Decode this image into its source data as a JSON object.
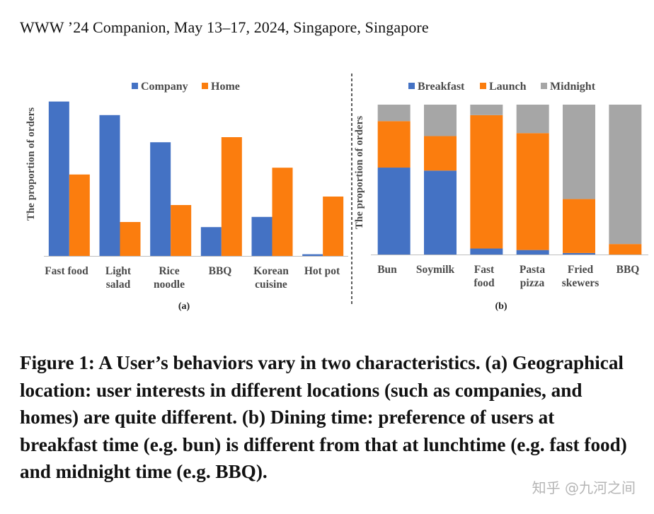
{
  "header": "WWW ’24 Companion, May 13–17, 2024, Singapore, Singapore",
  "caption": "Figure 1: A User’s behaviors vary in two characteristics. (a) Geographical location: user interests in different locations (such as companies, and homes) are quite different. (b) Dining time: preference of users at breakfast time (e.g. bun) is different from that at lunchtime (e.g. fast food) and midnight time (e.g. BBQ).",
  "watermark": "知乎 @九河之间",
  "colors": {
    "blue": "#4472c4",
    "orange": "#fb7d0e",
    "gray": "#a6a6a6"
  },
  "chart_data": [
    {
      "type": "bar",
      "sublabel": "(a)",
      "ylabel": "The proportion of orders",
      "legend_position": "top-right",
      "categories": [
        [
          "Fast food"
        ],
        [
          "Light",
          "salad"
        ],
        [
          "Rice",
          "noodle"
        ],
        [
          "BBQ"
        ],
        [
          "Korean",
          "cuisine"
        ],
        [
          "Hot pot"
        ]
      ],
      "series": [
        {
          "name": "Company",
          "color": "#4472c4",
          "values": [
            0.91,
            0.83,
            0.67,
            0.17,
            0.23,
            0.01
          ]
        },
        {
          "name": "Home",
          "color": "#fb7d0e",
          "values": [
            0.48,
            0.2,
            0.3,
            0.7,
            0.52,
            0.35
          ]
        }
      ],
      "ylim": [
        0,
        1
      ],
      "grid": false
    },
    {
      "type": "bar",
      "stacked": true,
      "sublabel": "(b)",
      "ylabel": "The proportion of orders",
      "legend_position": "top",
      "categories": [
        [
          "Bun"
        ],
        [
          "Soymilk"
        ],
        [
          "Fast",
          "food"
        ],
        [
          "Pasta",
          "pizza"
        ],
        [
          "Fried",
          "skewers"
        ],
        [
          "BBQ"
        ]
      ],
      "series": [
        {
          "name": "Breakfast",
          "color": "#4472c4",
          "values": [
            0.58,
            0.56,
            0.04,
            0.03,
            0.01,
            0.0
          ]
        },
        {
          "name": "Launch",
          "color": "#fb7d0e",
          "values": [
            0.31,
            0.23,
            0.89,
            0.78,
            0.36,
            0.07
          ]
        },
        {
          "name": "Midnight",
          "color": "#a6a6a6",
          "values": [
            0.11,
            0.21,
            0.07,
            0.19,
            0.63,
            0.93
          ]
        }
      ],
      "ylim": [
        0,
        1
      ],
      "grid": false
    }
  ]
}
